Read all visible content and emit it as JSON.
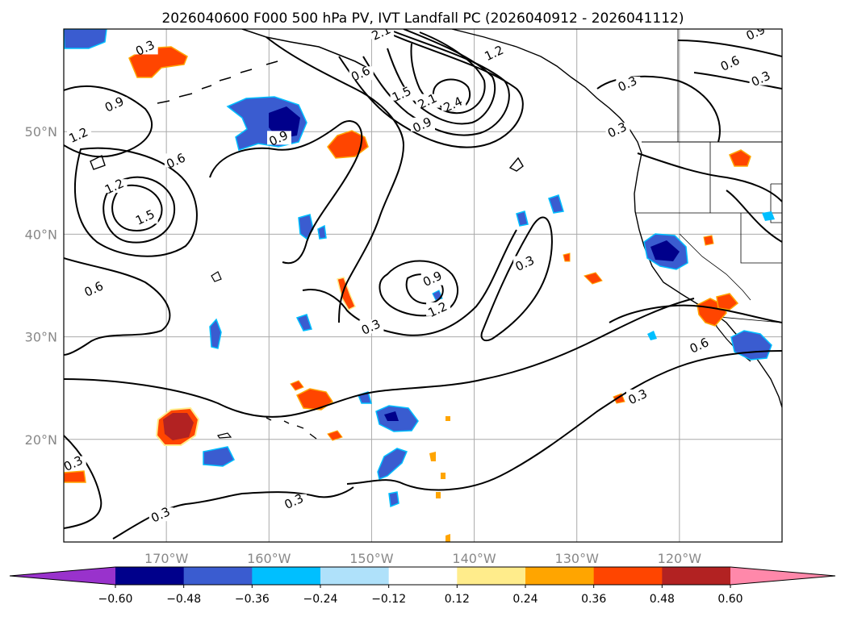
{
  "title": "2026040600 F000 500 hPa PV, IVT Landfall PC (2026040912 - 2026041112)",
  "map": {
    "lon_range": [
      -180,
      -110
    ],
    "lat_range": [
      10,
      60
    ],
    "lon_ticks": [
      {
        "value": -170,
        "label": "170°W"
      },
      {
        "value": -160,
        "label": "160°W"
      },
      {
        "value": -150,
        "label": "150°W"
      },
      {
        "value": -140,
        "label": "140°W"
      },
      {
        "value": -130,
        "label": "130°W"
      },
      {
        "value": -120,
        "label": "120°W"
      }
    ],
    "lat_ticks": [
      {
        "value": 50,
        "label": "50°N"
      },
      {
        "value": 40,
        "label": "40°N"
      },
      {
        "value": 30,
        "label": "30°N"
      },
      {
        "value": 20,
        "label": "20°N"
      }
    ],
    "contour_labels": [
      "0.3",
      "0.6",
      "0.9",
      "1.2",
      "1.5",
      "2.1",
      "2.4"
    ],
    "labels_shown": [
      {
        "text": "0.3",
        "lon": -172,
        "lat": 58
      },
      {
        "text": "0.6",
        "lon": -151,
        "lat": 55.5
      },
      {
        "text": "2.1",
        "lon": -149,
        "lat": 59.5
      },
      {
        "text": "1.2",
        "lon": -138,
        "lat": 57.5
      },
      {
        "text": "1.5",
        "lon": -147,
        "lat": 53.5
      },
      {
        "text": "2.1",
        "lon": -144.5,
        "lat": 52.8
      },
      {
        "text": "2.4",
        "lon": -142,
        "lat": 52.5
      },
      {
        "text": "0.9",
        "lon": -145,
        "lat": 50.5
      },
      {
        "text": "0.9",
        "lon": -175,
        "lat": 52.5
      },
      {
        "text": "1.2",
        "lon": -178.5,
        "lat": 49.5
      },
      {
        "text": "0.9",
        "lon": -159,
        "lat": 49.2
      },
      {
        "text": "0.6",
        "lon": -169,
        "lat": 47
      },
      {
        "text": "1.2",
        "lon": -175,
        "lat": 44.5
      },
      {
        "text": "1.5",
        "lon": -172,
        "lat": 41.5
      },
      {
        "text": "0.6",
        "lon": -177,
        "lat": 34.5
      },
      {
        "text": "0.9",
        "lon": -144,
        "lat": 35.5
      },
      {
        "text": "1.2",
        "lon": -143.5,
        "lat": 32.5
      },
      {
        "text": "0.3",
        "lon": -150,
        "lat": 30.8
      },
      {
        "text": "0.3",
        "lon": -135,
        "lat": 37
      },
      {
        "text": "0.6",
        "lon": -118,
        "lat": 29
      },
      {
        "text": "0.3",
        "lon": -124,
        "lat": 24
      },
      {
        "text": "0.3",
        "lon": -179,
        "lat": 17.5
      },
      {
        "text": "0.3",
        "lon": -170.5,
        "lat": 12.5
      },
      {
        "text": "0.3",
        "lon": -157.5,
        "lat": 13.8
      },
      {
        "text": "0.9",
        "lon": -112.5,
        "lat": 59.5
      },
      {
        "text": "0.6",
        "lon": -115,
        "lat": 56.5
      },
      {
        "text": "0.3",
        "lon": -112,
        "lat": 55
      },
      {
        "text": "0.3",
        "lon": -125,
        "lat": 54.5
      },
      {
        "text": "0.3",
        "lon": -126,
        "lat": 50
      }
    ]
  },
  "colorbar": {
    "levels": [
      "-0.60",
      "-0.48",
      "-0.36",
      "-0.24",
      "-0.12",
      "0.12",
      "0.24",
      "0.36",
      "0.48",
      "0.60"
    ],
    "colors": {
      "lt_-0.60": "#9932cc",
      "-0.60_-0.48": "#00008b",
      "-0.48_-0.36": "#3a5cd0",
      "-0.36_-0.24": "#00bfff",
      "-0.24_-0.12": "#afe1fa",
      "-0.12_0.12": "#ffffff",
      "0.12_0.24": "#ffec8b",
      "0.24_0.36": "#ffa500",
      "0.36_0.48": "#ff4500",
      "0.48_0.60": "#b22222",
      "gt_0.60": "#ff88aa"
    }
  }
}
